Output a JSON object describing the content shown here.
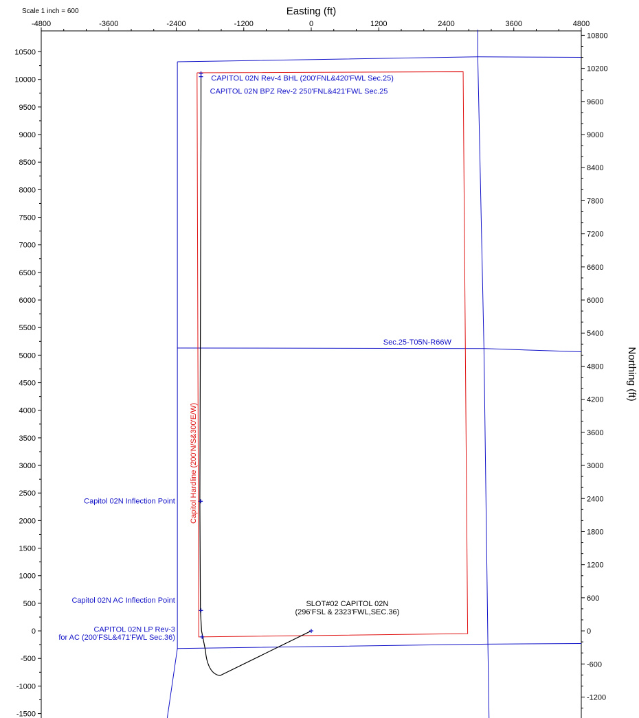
{
  "scale_label": "Scale 1 inch = 600",
  "colors": {
    "section_lines": "#1010c8",
    "hardline": "#e01010",
    "wellpath": "#000000",
    "labels_blue": "#1010c8"
  },
  "chart_data": {
    "type": "line",
    "title": "",
    "xlabel": "Easting (ft)",
    "left_axis_label": "",
    "ylabel": "Northing (ft)",
    "xlim": [
      -4800,
      4800
    ],
    "ylim": [
      -1580,
      10880
    ],
    "x_ticks": [
      "-4800",
      "-3600",
      "-2400",
      "-1200",
      "0",
      "1200",
      "2400",
      "3600",
      "4800"
    ],
    "y_left_ticks": [
      "-1500",
      "-1000",
      "-500",
      "0",
      "500",
      "1000",
      "1500",
      "2000",
      "2500",
      "3000",
      "3500",
      "4000",
      "4500",
      "5000",
      "5500",
      "6000",
      "6500",
      "7000",
      "7500",
      "8000",
      "8500",
      "9000",
      "9500",
      "10000",
      "10500"
    ],
    "y_right_ticks": [
      "-1200",
      "-600",
      "0",
      "600",
      "1200",
      "1800",
      "2400",
      "3000",
      "3600",
      "4200",
      "4800",
      "5400",
      "6000",
      "6600",
      "7200",
      "7800",
      "8400",
      "9000",
      "9600",
      "10200",
      "10800"
    ],
    "grid": false,
    "series": [
      {
        "name": "section lines",
        "segments": [
          [
            [
              -2380,
              10320
            ],
            [
              2960,
              10410
            ],
            [
              4800,
              10400
            ]
          ],
          [
            [
              -2380,
              10320
            ],
            [
              -2380,
              -320
            ],
            [
              -2560,
              -1580
            ]
          ],
          [
            [
              2960,
              10900
            ],
            [
              2960,
              10410
            ],
            [
              3070,
              5120
            ],
            [
              3140,
              -240
            ],
            [
              3160,
              -1580
            ]
          ],
          [
            [
              -2380,
              5130
            ],
            [
              3070,
              5120
            ],
            [
              4800,
              5060
            ]
          ],
          [
            [
              -2380,
              -320
            ],
            [
              3140,
              -240
            ],
            [
              4800,
              -230
            ]
          ]
        ]
      },
      {
        "name": "Capitol Hardline (200'N/S&300'E/W)",
        "points": [
          [
            -2030,
            10120
          ],
          [
            2700,
            10140
          ],
          [
            2780,
            -50
          ],
          [
            -2000,
            -110
          ],
          [
            -2030,
            10120
          ]
        ]
      },
      {
        "name": "wellpath",
        "points": [
          [
            0,
            0
          ],
          [
            -1620,
            -810
          ],
          [
            -1720,
            -760
          ],
          [
            -1880,
            -360
          ],
          [
            -1950,
            0
          ],
          [
            -1970,
            370
          ],
          [
            -1980,
            2350
          ],
          [
            -1960,
            9000
          ],
          [
            -1960,
            10050
          ],
          [
            -1960,
            10100
          ]
        ]
      }
    ],
    "markers": [
      {
        "x": 0,
        "y": 0
      },
      {
        "x": -1940,
        "y": -110
      },
      {
        "x": -1960,
        "y": 370
      },
      {
        "x": -1965,
        "y": 2350
      },
      {
        "x": -1960,
        "y": 10050
      },
      {
        "x": -1960,
        "y": 10110
      }
    ],
    "annotations": [
      {
        "text": "CAPITOL 02N Rev-4 BHL (200'FNL&420'FWL Sec.25)",
        "x": -1780,
        "y": 9980,
        "color": "blue"
      },
      {
        "text": "CAPITOL 02N BPZ Rev-2 250'FNL&421'FWL Sec.25",
        "x": -1800,
        "y": 9740,
        "color": "blue"
      },
      {
        "text": "Sec.25-T05N-R66W",
        "x": 1280,
        "y": 5190,
        "color": "blue"
      },
      {
        "text": "Capitol 02N Inflection Point",
        "x": -2420,
        "y": 2310,
        "color": "blue"
      },
      {
        "text": "Capitol 02N AC Inflection Point",
        "x": -2420,
        "y": 510,
        "color": "blue"
      },
      {
        "text": "CAPITOL 02N LP Rev-3",
        "x": -2420,
        "y": -20,
        "color": "blue"
      },
      {
        "text": "for AC (200'FSL&471'FWL Sec.36)",
        "x": -2420,
        "y": -160,
        "color": "blue"
      },
      {
        "text": "SLOT#02 CAPITOL 02N",
        "x": 640,
        "y": 450,
        "color": "black"
      },
      {
        "text": "(296'FSL & 2323'FWL,SEC.36)",
        "x": 640,
        "y": 300,
        "color": "black"
      },
      {
        "text": "Capitol Hardline (200'N/S&300'E/W)",
        "x": -2050,
        "y": 3040,
        "color": "red"
      }
    ]
  }
}
